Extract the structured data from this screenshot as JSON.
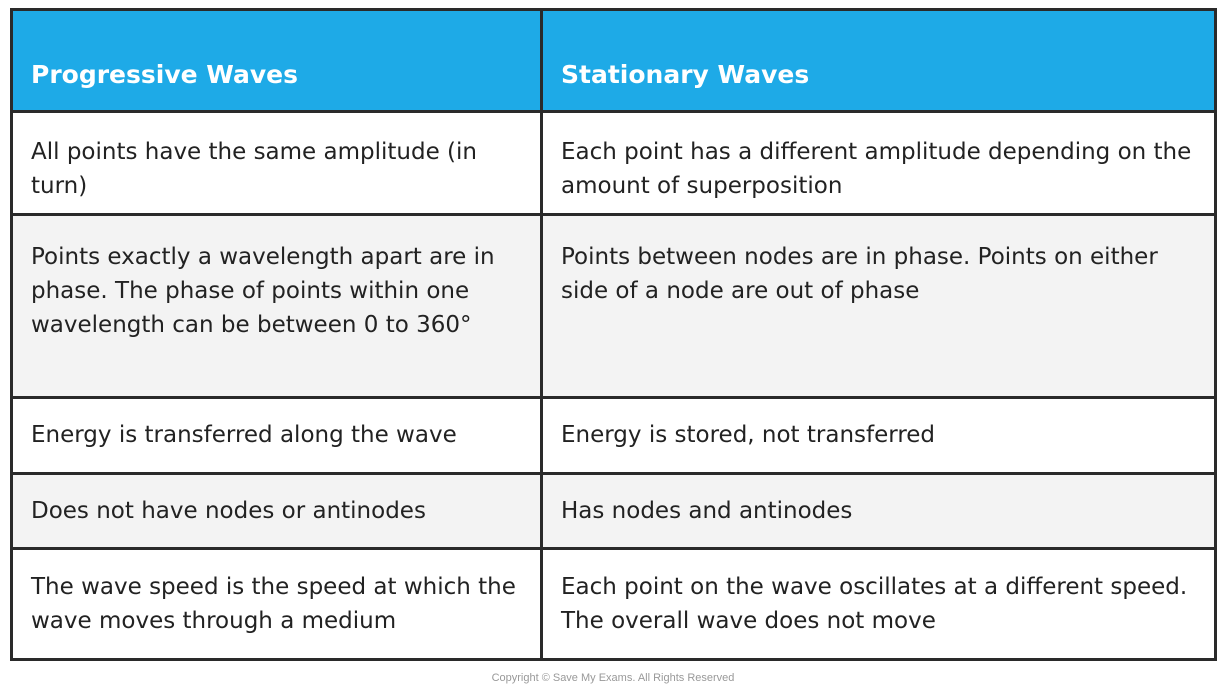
{
  "table": {
    "headers": [
      "Progressive Waves",
      "Stationary Waves"
    ],
    "rows": [
      [
        "All points have  the same amplitude (in turn)",
        "Each point has a different amplitude depending on the  amount of superposition"
      ],
      [
        "Points exactly a wavelength apart are  in phase. The phase of points within one wavelength can be between 0 to 360°",
        "Points between nodes are  in phase. Points on either side of a node are out of phase"
      ],
      [
        "Energy is transferred  along the wave",
        "Energy is stored, not transferred"
      ],
      [
        "Does not have nodes or antinodes",
        "Has nodes and antinodes"
      ],
      [
        "The wave speed is the speed at which the wave moves through a medium",
        "Each point on the wave oscillates at a different speed. The overall wave does not move"
      ]
    ]
  },
  "colors": {
    "header_bg": "#1eaae7",
    "alt_row_bg": "#f3f3f3",
    "border": "#2a2a2a"
  },
  "footer": {
    "copyright": "Copyright © Save My Exams. All Rights Reserved"
  }
}
